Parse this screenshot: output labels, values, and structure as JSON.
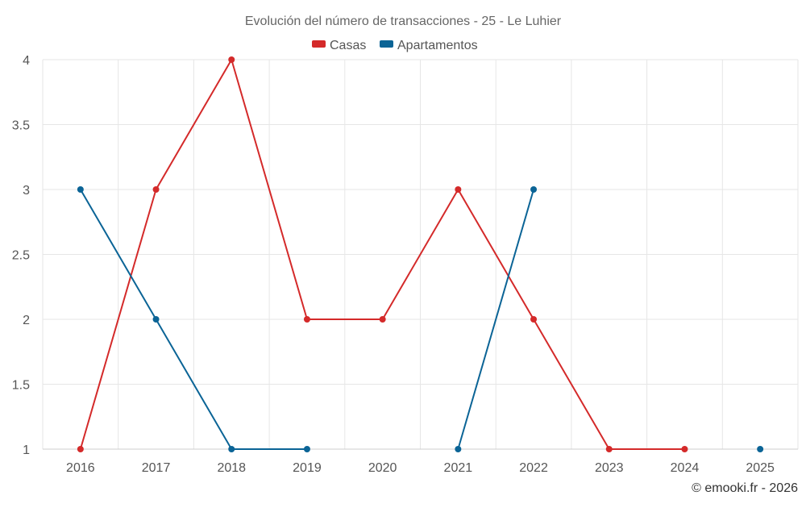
{
  "chart_data": {
    "type": "line",
    "title": "Evolución del número de transacciones - 25 - Le Luhier",
    "categories": [
      "2016",
      "2017",
      "2018",
      "2019",
      "2020",
      "2021",
      "2022",
      "2023",
      "2024",
      "2025"
    ],
    "series": [
      {
        "name": "Casas",
        "color": "#d42a2a",
        "values": [
          1,
          3,
          4,
          2,
          2,
          3,
          2,
          1,
          1,
          null
        ]
      },
      {
        "name": "Apartamentos",
        "color": "#0b6496",
        "values": [
          3,
          2,
          1,
          1,
          null,
          1,
          3,
          null,
          null,
          1
        ]
      }
    ],
    "yticks": [
      "1",
      "1.5",
      "2",
      "2.5",
      "3",
      "3.5",
      "4"
    ],
    "ylim": [
      1,
      4
    ],
    "xlabel": "",
    "ylabel": "",
    "grid": true,
    "legend_position": "top-center",
    "credit": "© emooki.fr - 2026"
  }
}
